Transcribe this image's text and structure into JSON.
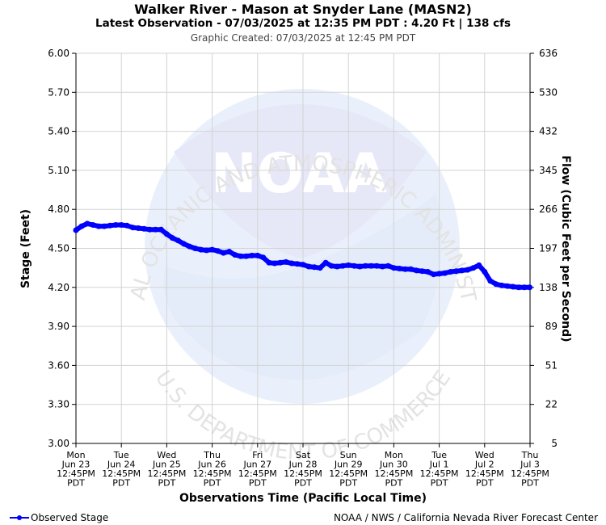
{
  "header": {
    "title": "Walker River - Mason at Snyder Lane (MASN2)",
    "latest": "Latest Observation - 07/03/2025 at 12:35 PM PDT : 4.20 Ft | 138 cfs",
    "created": "Graphic Created: 07/03/2025 at 12:45 PM PDT"
  },
  "watermark": {
    "logo_text": "NOAA",
    "ring_top": "NATIONAL OCEANIC AND ATMOSPHERIC ADMINISTRATION",
    "ring_bottom": "U.S. DEPARTMENT OF COMMERCE"
  },
  "legend": {
    "label": "Observed Stage"
  },
  "credit": "NOAA / NWS / California Nevada River Forecast Center",
  "colors": {
    "series": "#0000ff",
    "grid": "#d3d3d3",
    "watermark": "#e8ecfa"
  },
  "chart_data": {
    "type": "line",
    "xlabel": "Observations Time (Pacific Local Time)",
    "ylabel": "Stage (Feet)",
    "y2label": "Flow (Cubic Feet per Second)",
    "ylim": [
      3.0,
      6.0
    ],
    "yticks": [
      "3.00",
      "3.30",
      "3.60",
      "3.90",
      "4.20",
      "4.50",
      "4.80",
      "5.10",
      "5.40",
      "5.70",
      "6.00"
    ],
    "y2ticks": [
      "5",
      "22",
      "51",
      "89",
      "138",
      "197",
      "266",
      "345",
      "432",
      "530",
      "636"
    ],
    "xlim": [
      "Mon Jun 23 12:45PM PDT",
      "Thu Jul 3 12:45PM PDT"
    ],
    "xticks": [
      {
        "day": "Mon",
        "date": "Jun 23",
        "time": "12:45PM",
        "tz": "PDT"
      },
      {
        "day": "Tue",
        "date": "Jun 24",
        "time": "12:45PM",
        "tz": "PDT"
      },
      {
        "day": "Wed",
        "date": "Jun 25",
        "time": "12:45PM",
        "tz": "PDT"
      },
      {
        "day": "Thu",
        "date": "Jun 26",
        "time": "12:45PM",
        "tz": "PDT"
      },
      {
        "day": "Fri",
        "date": "Jun 27",
        "time": "12:45PM",
        "tz": "PDT"
      },
      {
        "day": "Sat",
        "date": "Jun 28",
        "time": "12:45PM",
        "tz": "PDT"
      },
      {
        "day": "Sun",
        "date": "Jun 29",
        "time": "12:45PM",
        "tz": "PDT"
      },
      {
        "day": "Mon",
        "date": "Jun 30",
        "time": "12:45PM",
        "tz": "PDT"
      },
      {
        "day": "Tue",
        "date": "Jul 1",
        "time": "12:45PM",
        "tz": "PDT"
      },
      {
        "day": "Wed",
        "date": "Jul 2",
        "time": "12:45PM",
        "tz": "PDT"
      },
      {
        "day": "Thu",
        "date": "Jul 3",
        "time": "12:45PM",
        "tz": "PDT"
      }
    ],
    "grid": true,
    "legend_position": "bottom-left",
    "series": [
      {
        "name": "Observed Stage",
        "color": "#0000ff",
        "points": [
          [
            "Mon Jun 23 12:45PM",
            4.64
          ],
          [
            "Mon Jun 23 3:45PM",
            4.67
          ],
          [
            "Mon Jun 23 6:45PM",
            4.69
          ],
          [
            "Mon Jun 23 9:45PM",
            4.68
          ],
          [
            "Tue Jun 24 12:45AM",
            4.67
          ],
          [
            "Tue Jun 24 3:45AM",
            4.67
          ],
          [
            "Tue Jun 24 6:45AM",
            4.675
          ],
          [
            "Tue Jun 24 9:45AM",
            4.68
          ],
          [
            "Tue Jun 24 12:45PM",
            4.68
          ],
          [
            "Tue Jun 24 3:45PM",
            4.675
          ],
          [
            "Tue Jun 24 6:45PM",
            4.66
          ],
          [
            "Tue Jun 24 9:45PM",
            4.655
          ],
          [
            "Wed Jun 25 12:45AM",
            4.65
          ],
          [
            "Wed Jun 25 3:45AM",
            4.645
          ],
          [
            "Wed Jun 25 6:45AM",
            4.645
          ],
          [
            "Wed Jun 25 9:45AM",
            4.645
          ],
          [
            "Wed Jun 25 12:45PM",
            4.61
          ],
          [
            "Wed Jun 25 3:45PM",
            4.58
          ],
          [
            "Wed Jun 25 6:45PM",
            4.56
          ],
          [
            "Wed Jun 25 9:45PM",
            4.535
          ],
          [
            "Thu Jun 26 12:45AM",
            4.515
          ],
          [
            "Thu Jun 26 3:45AM",
            4.5
          ],
          [
            "Thu Jun 26 6:45AM",
            4.49
          ],
          [
            "Thu Jun 26 9:45AM",
            4.485
          ],
          [
            "Thu Jun 26 12:45PM",
            4.49
          ],
          [
            "Thu Jun 26 3:45PM",
            4.48
          ],
          [
            "Thu Jun 26 6:45PM",
            4.465
          ],
          [
            "Thu Jun 26 9:45PM",
            4.475
          ],
          [
            "Fri Jun 27 12:45AM",
            4.45
          ],
          [
            "Fri Jun 27 3:45AM",
            4.44
          ],
          [
            "Fri Jun 27 6:45AM",
            4.44
          ],
          [
            "Fri Jun 27 9:45AM",
            4.445
          ],
          [
            "Fri Jun 27 12:45PM",
            4.445
          ],
          [
            "Fri Jun 27 3:45PM",
            4.43
          ],
          [
            "Fri Jun 27 6:45PM",
            4.39
          ],
          [
            "Fri Jun 27 9:45PM",
            4.385
          ],
          [
            "Sat Jun 28 12:45AM",
            4.39
          ],
          [
            "Sat Jun 28 3:45AM",
            4.395
          ],
          [
            "Sat Jun 28 6:45AM",
            4.385
          ],
          [
            "Sat Jun 28 9:45AM",
            4.38
          ],
          [
            "Sat Jun 28 12:45PM",
            4.375
          ],
          [
            "Sat Jun 28 3:45PM",
            4.36
          ],
          [
            "Sat Jun 28 6:45PM",
            4.355
          ],
          [
            "Sat Jun 28 9:45PM",
            4.35
          ],
          [
            "Sun Jun 29 12:45AM",
            4.39
          ],
          [
            "Sun Jun 29 3:45AM",
            4.365
          ],
          [
            "Sun Jun 29 6:45AM",
            4.36
          ],
          [
            "Sun Jun 29 9:45AM",
            4.365
          ],
          [
            "Sun Jun 29 12:45PM",
            4.37
          ],
          [
            "Sun Jun 29 3:45PM",
            4.365
          ],
          [
            "Sun Jun 29 6:45PM",
            4.36
          ],
          [
            "Sun Jun 29 9:45PM",
            4.365
          ],
          [
            "Mon Jun 30 12:45AM",
            4.365
          ],
          [
            "Mon Jun 30 3:45AM",
            4.365
          ],
          [
            "Mon Jun 30 6:45AM",
            4.36
          ],
          [
            "Mon Jun 30 9:45AM",
            4.365
          ],
          [
            "Mon Jun 30 12:45PM",
            4.35
          ],
          [
            "Mon Jun 30 3:45PM",
            4.345
          ],
          [
            "Mon Jun 30 6:45PM",
            4.34
          ],
          [
            "Mon Jun 30 9:45PM",
            4.34
          ],
          [
            "Tue Jul 1 12:45AM",
            4.33
          ],
          [
            "Tue Jul 1 3:45AM",
            4.325
          ],
          [
            "Tue Jul 1 6:45AM",
            4.32
          ],
          [
            "Tue Jul 1 9:45AM",
            4.3
          ],
          [
            "Tue Jul 1 12:45PM",
            4.305
          ],
          [
            "Tue Jul 1 3:45PM",
            4.31
          ],
          [
            "Tue Jul 1 6:45PM",
            4.32
          ],
          [
            "Tue Jul 1 9:45PM",
            4.325
          ],
          [
            "Wed Jul 2 12:45AM",
            4.33
          ],
          [
            "Wed Jul 2 3:45AM",
            4.335
          ],
          [
            "Wed Jul 2 6:45AM",
            4.35
          ],
          [
            "Wed Jul 2 9:45AM",
            4.37
          ],
          [
            "Wed Jul 2 12:45PM",
            4.32
          ],
          [
            "Wed Jul 2 3:45PM",
            4.25
          ],
          [
            "Wed Jul 2 6:45PM",
            4.225
          ],
          [
            "Wed Jul 2 9:45PM",
            4.215
          ],
          [
            "Thu Jul 3 12:45AM",
            4.21
          ],
          [
            "Thu Jul 3 3:45AM",
            4.205
          ],
          [
            "Thu Jul 3 6:45AM",
            4.2
          ],
          [
            "Thu Jul 3 9:45AM",
            4.2
          ],
          [
            "Thu Jul 3 12:35PM",
            4.2
          ]
        ]
      }
    ]
  }
}
